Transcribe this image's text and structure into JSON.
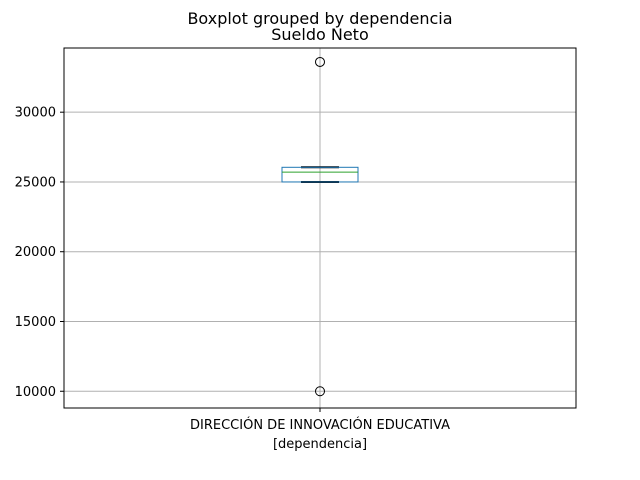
{
  "chart_data": {
    "type": "boxplot",
    "suptitle": "Boxplot grouped by dependencia",
    "title": "Sueldo Neto",
    "xlabel": "[dependencia]",
    "categories": [
      "DIRECCIÓN DE INNOVACIÓN EDUCATIVA"
    ],
    "ylim": [
      8800,
      34600
    ],
    "yticks": [
      10000,
      15000,
      20000,
      25000,
      30000
    ],
    "ytick_labels": [
      "10000",
      "15000",
      "20000",
      "25000",
      "30000"
    ],
    "grid": true,
    "boxes": [
      {
        "whisker_low": 25000,
        "q1": 25000,
        "median": 25700,
        "q3": 26050,
        "whisker_high": 26050,
        "fliers": [
          33600,
          10000
        ]
      }
    ],
    "colors": {
      "box": "#1f77b4",
      "median": "#2ca02c",
      "whisker": "#000000",
      "grid": "#b0b0b0",
      "axes": "#000000"
    }
  }
}
